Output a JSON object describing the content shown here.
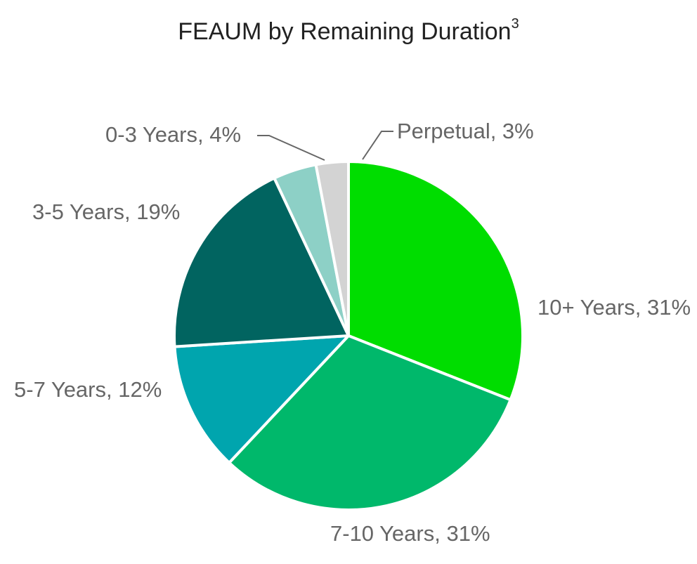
{
  "chart_data": {
    "type": "pie",
    "title": "FEAUM by Remaining Duration",
    "title_superscript": "3",
    "start_angle_deg": 0,
    "direction": "clockwise",
    "slices": [
      {
        "label": "10+ Years",
        "value": 31,
        "display": "10+ Years, 31%",
        "color": "#00DD00"
      },
      {
        "label": "7-10 Years",
        "value": 31,
        "display": "7-10 Years, 31%",
        "color": "#00B86B"
      },
      {
        "label": "5-7 Years",
        "value": 12,
        "display": "5-7 Years, 12%",
        "color": "#00A5AE"
      },
      {
        "label": "3-5 Years",
        "value": 19,
        "display": "3-5 Years, 19%",
        "color": "#016460"
      },
      {
        "label": "0-3 Years",
        "value": 4,
        "display": "0-3 Years, 4%",
        "color": "#8DD0C6"
      },
      {
        "label": "Perpetual",
        "value": 3,
        "display": "Perpetual, 3%",
        "color": "#D3D3D3"
      }
    ],
    "legend": "none",
    "data_labels": "outside with leader lines for small slices"
  }
}
